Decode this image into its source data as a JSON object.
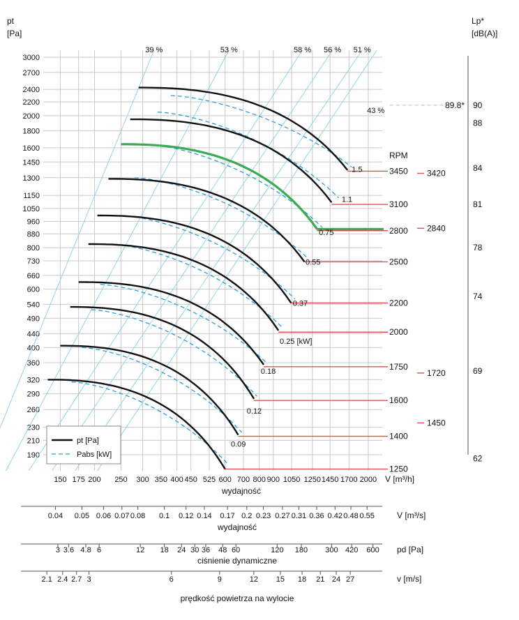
{
  "chart_data": {
    "type": "line",
    "y_title": [
      "pt",
      "[Pa]"
    ],
    "x_label": "V [m³/h]",
    "x_caption": "wydajność",
    "x_ticks": [
      150,
      175,
      200,
      250,
      300,
      350,
      400,
      450,
      525,
      600,
      700,
      800,
      900,
      1050,
      1250,
      1450,
      1700,
      2000
    ],
    "y_ticks": [
      190,
      210,
      230,
      260,
      290,
      320,
      360,
      400,
      440,
      490,
      540,
      600,
      660,
      730,
      800,
      880,
      960,
      1050,
      1150,
      1300,
      1450,
      1600,
      1800,
      2000,
      2200,
      2400,
      2700,
      3000
    ],
    "x_range": [
      130,
      2250
    ],
    "y_range": [
      170,
      3150
    ],
    "right_axis": {
      "title": [
        "Lp*",
        "[dB(A)]"
      ],
      "ticks": [
        90,
        88,
        84,
        81,
        78,
        74,
        69,
        62
      ],
      "tick_at_pt": [
        2150,
        1900,
        1390,
        1080,
        800,
        570,
        340,
        185
      ],
      "marker": {
        "label": "89.8*",
        "pt": 2150
      }
    },
    "efficiency": {
      "labels": [
        "39 %",
        "53 %",
        "58 %",
        "56 %",
        "51 %"
      ],
      "label_x": [
        330,
        620,
        1150,
        1480,
        1900
      ],
      "extra_label": "43 %",
      "extra_label_at": [
        2130,
        2120
      ],
      "line_x_at_top": [
        330,
        620,
        1150,
        1480,
        1900,
        2150
      ],
      "line_x_at_bottom": [
        78,
        95,
        115,
        140,
        170,
        205
      ]
    },
    "rpm_title": "RPM",
    "rpm_labels": [
      {
        "label": "3450",
        "pt": 1360
      },
      {
        "label": "3100",
        "pt": 1080
      },
      {
        "label": "2800",
        "pt": 900
      },
      {
        "label": "2500",
        "pt": 725
      },
      {
        "label": "2200",
        "pt": 545
      },
      {
        "label": "2000",
        "pt": 445
      },
      {
        "label": "1750",
        "pt": 350
      },
      {
        "label": "1600",
        "pt": 277
      },
      {
        "label": "1400",
        "pt": 216
      },
      {
        "label": "1250",
        "pt": 172
      }
    ],
    "rpm_right_labels": [
      {
        "label": "3420",
        "pt": 1340
      },
      {
        "label": "2840",
        "pt": 915
      },
      {
        "label": "1720",
        "pt": 335
      },
      {
        "label": "1450",
        "pt": 237
      }
    ],
    "power_labels": [
      {
        "label": "1.5",
        "x": 1740,
        "pt": 1380
      },
      {
        "label": "1.1",
        "x": 1600,
        "pt": 1120
      },
      {
        "label": "0.75",
        "x": 1320,
        "pt": 890
      },
      {
        "label": "0.55",
        "x": 1180,
        "pt": 725
      },
      {
        "label": "0.37",
        "x": 1060,
        "pt": 545
      },
      {
        "label": "0.25  [kW]",
        "x": 950,
        "pt": 418
      },
      {
        "label": "0.18",
        "x": 810,
        "pt": 340
      },
      {
        "label": "0.12",
        "x": 720,
        "pt": 258
      },
      {
        "label": "0.09",
        "x": 630,
        "pt": 205
      }
    ],
    "series": [
      {
        "rpm": 3450,
        "v_start": 290,
        "v_end": 1680,
        "pt_max": 2430,
        "pt_end": 1370
      },
      {
        "rpm": 3100,
        "v_start": 270,
        "v_end": 1470,
        "pt_max": 1950,
        "pt_end": 1095
      },
      {
        "rpm": 2800,
        "v_start": 250,
        "v_end": 1300,
        "pt_max": 1640,
        "pt_end": 910,
        "highlight": true
      },
      {
        "rpm": 2500,
        "v_start": 225,
        "v_end": 1170,
        "pt_max": 1290,
        "pt_end": 725
      },
      {
        "rpm": 2200,
        "v_start": 205,
        "v_end": 1045,
        "pt_max": 1000,
        "pt_end": 545
      },
      {
        "rpm": 2000,
        "v_start": 190,
        "v_end": 940,
        "pt_max": 820,
        "pt_end": 450
      },
      {
        "rpm": 1750,
        "v_start": 175,
        "v_end": 830,
        "pt_max": 630,
        "pt_end": 355
      },
      {
        "rpm": 1600,
        "v_start": 163,
        "v_end": 765,
        "pt_max": 530,
        "pt_end": 280
      },
      {
        "rpm": 1400,
        "v_start": 150,
        "v_end": 670,
        "pt_max": 405,
        "pt_end": 218
      },
      {
        "rpm": 1250,
        "v_start": 135,
        "v_end": 600,
        "pt_max": 320,
        "pt_end": 172
      }
    ],
    "highlight_tail": {
      "v_to": 2000,
      "pt": 910
    },
    "pabs_curves": [
      {
        "v_start": 380,
        "v_end": 1740,
        "pt_start": 2300,
        "pt_end": 1400
      },
      {
        "v_start": 340,
        "v_end": 1560,
        "pt_start": 2050,
        "pt_end": 1130
      },
      {
        "v_start": 310,
        "v_end": 1360,
        "pt_start": 1640,
        "pt_end": 920
      },
      {
        "v_start": 280,
        "v_end": 1210,
        "pt_start": 1300,
        "pt_end": 740
      },
      {
        "v_start": 250,
        "v_end": 1080,
        "pt_start": 1000,
        "pt_end": 560
      },
      {
        "v_start": 230,
        "v_end": 970,
        "pt_start": 820,
        "pt_end": 460
      },
      {
        "v_start": 210,
        "v_end": 850,
        "pt_start": 620,
        "pt_end": 360
      },
      {
        "v_start": 195,
        "v_end": 785,
        "pt_start": 520,
        "pt_end": 285
      },
      {
        "v_start": 180,
        "v_end": 690,
        "pt_start": 400,
        "pt_end": 222
      },
      {
        "v_start": 165,
        "v_end": 615,
        "pt_start": 315,
        "pt_end": 178
      }
    ],
    "legend": {
      "items": [
        "pt [Pa]",
        "Pabs [kW]"
      ],
      "placement": "bottom-left"
    },
    "secondary_axes": [
      {
        "label": "V  [m³/s]",
        "caption": "wydajność",
        "ticks": [
          "0.04",
          "0.05",
          "0.06",
          "0.07",
          "0.08",
          "0.1",
          "0.12",
          "0.14",
          "0.17",
          "0.2",
          "0.23",
          "0.27",
          "0.31",
          "0.36",
          "0.42",
          "0.48",
          "0.55"
        ],
        "tick_x_m3h": [
          144,
          180,
          216,
          252,
          288,
          360,
          432,
          504,
          612,
          720,
          828,
          972,
          1116,
          1296,
          1512,
          1728,
          1980
        ]
      },
      {
        "label": "pd  [Pa]",
        "caption": "ciśnienie dynamiczne",
        "ticks": [
          "3",
          "3.6",
          "4.8",
          "6",
          "12",
          "18",
          "24",
          "30",
          "36",
          "48",
          "60",
          "120",
          "180",
          "300",
          "420",
          "600"
        ],
        "tick_x_m3h": [
          147,
          161,
          186,
          208,
          294,
          360,
          416,
          465,
          510,
          588,
          657,
          930,
          1139,
          1470,
          1740,
          2080
        ]
      },
      {
        "label": "v  [m/s]",
        "caption": "prędkość powietrza na wylocie",
        "ticks": [
          "2.1",
          "2.4",
          "2.7",
          "3",
          "6",
          "9",
          "12",
          "15",
          "18",
          "21",
          "24",
          "27"
        ],
        "tick_x_m3h": [
          134,
          153,
          172,
          191,
          382,
          573,
          764,
          955,
          1146,
          1337,
          1528,
          1719
        ]
      }
    ]
  }
}
